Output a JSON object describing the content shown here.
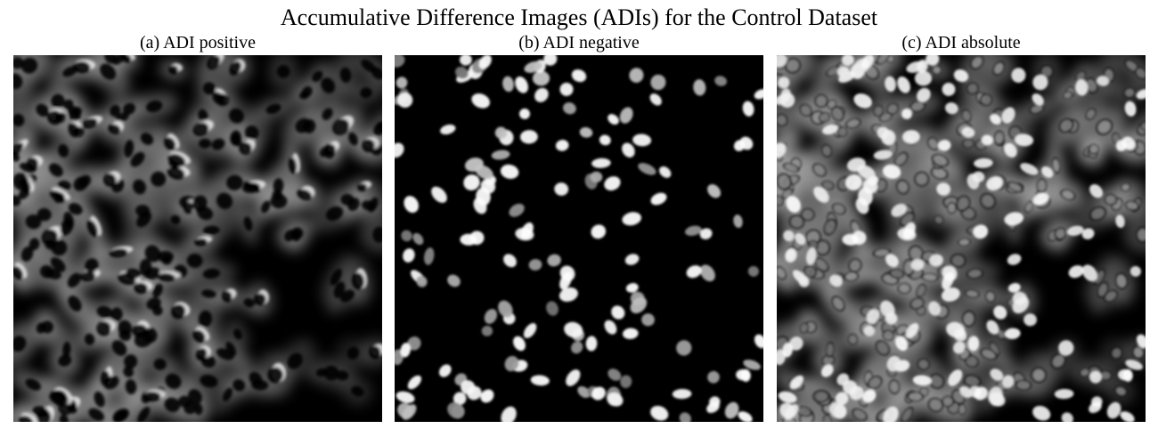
{
  "figure": {
    "title": "Accumulative Difference Images (ADIs) for the Control Dataset"
  },
  "panels": [
    {
      "label": "(a) ADI positive",
      "kind": "positive"
    },
    {
      "label": "(b) ADI negative",
      "kind": "negative"
    },
    {
      "label": "(c) ADI absolute",
      "kind": "absolute"
    }
  ],
  "colors": {
    "background": "#000000",
    "cell_highlight": "#ffffff",
    "page": "#ffffff"
  }
}
